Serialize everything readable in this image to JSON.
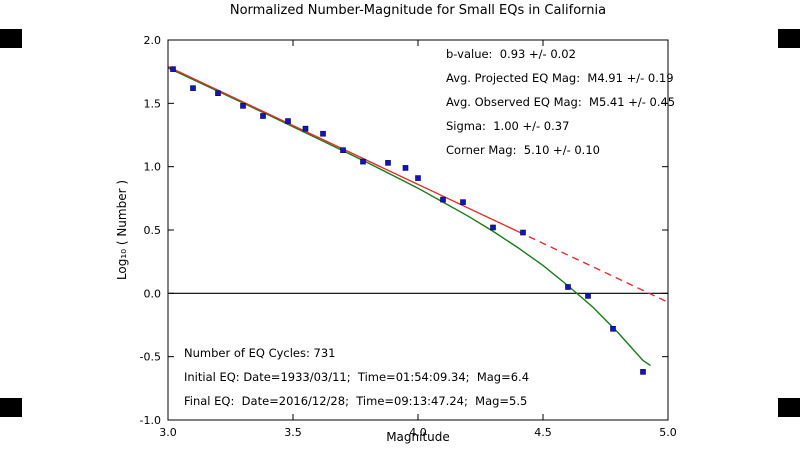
{
  "frame": {
    "background": "#ffffff",
    "corner_mark_color": "#000000"
  },
  "chart_data": {
    "type": "scatter",
    "title": "Normalized Number-Magnitude for Small EQs in California",
    "xlabel": "Magnitude",
    "ylabel": "Log₁₀ ( Number )",
    "xlim": [
      3.0,
      5.0
    ],
    "ylim": [
      -1.0,
      2.0
    ],
    "grid": false,
    "legend": "none",
    "x_ticks": [
      3.0,
      3.5,
      4.0,
      4.5,
      5.0
    ],
    "x_tick_labels": [
      "3.0",
      "3.5",
      "4.0",
      "4.5",
      "5.0"
    ],
    "y_ticks": [
      -1.0,
      -0.5,
      0.0,
      0.5,
      1.0,
      1.5,
      2.0
    ],
    "y_tick_labels": [
      "-1.0",
      "-0.5",
      "0.0",
      "0.5",
      "1.0",
      "1.5",
      "2.0"
    ],
    "annotations": {
      "stats_lines": [
        "b-value:  0.93 +/- 0.02",
        "Avg. Projected EQ Mag:  M4.91 +/- 0.19",
        "Avg. Observed EQ Mag:  M5.41 +/- 0.45",
        "Sigma:  1.00 +/- 0.37",
        "Corner Mag:  5.10 +/- 0.10"
      ],
      "info_lines": [
        "Number of EQ Cycles: 731",
        "Initial EQ: Date=1933/03/11;  Time=01:54:09.34;  Mag=6.4",
        "Final EQ:  Date=2016/12/28;  Time=09:13:47.24;  Mag=5.5"
      ]
    },
    "series": [
      {
        "name": "zero-reference-line",
        "type": "line",
        "style": "solid",
        "color": "#000000",
        "width": 1.2,
        "points": [
          [
            3.0,
            0.0
          ],
          [
            5.0,
            0.0
          ]
        ]
      },
      {
        "name": "tapered-gr-model-curve",
        "type": "line",
        "style": "solid",
        "color": "#1a7a1a",
        "width": 1.4,
        "points": [
          [
            3.0,
            1.78
          ],
          [
            3.2,
            1.595
          ],
          [
            3.4,
            1.41
          ],
          [
            3.6,
            1.22
          ],
          [
            3.8,
            1.03
          ],
          [
            3.9,
            0.93
          ],
          [
            4.0,
            0.83
          ],
          [
            4.1,
            0.72
          ],
          [
            4.2,
            0.61
          ],
          [
            4.3,
            0.49
          ],
          [
            4.4,
            0.36
          ],
          [
            4.5,
            0.22
          ],
          [
            4.6,
            0.06
          ],
          [
            4.7,
            -0.11
          ],
          [
            4.8,
            -0.31
          ],
          [
            4.9,
            -0.53
          ],
          [
            4.93,
            -0.57
          ]
        ]
      },
      {
        "name": "gr-fit-line",
        "type": "line",
        "style": "solid",
        "color": "#e03030",
        "width": 1.4,
        "points": [
          [
            3.0,
            1.79
          ],
          [
            4.4,
            0.488
          ]
        ]
      },
      {
        "name": "gr-fit-extrapolation-dashed",
        "type": "line",
        "style": "dashed",
        "color": "#e03030",
        "width": 1.4,
        "points": [
          [
            4.4,
            0.488
          ],
          [
            5.05,
            -0.116
          ]
        ]
      },
      {
        "name": "observed-eq-counts",
        "type": "scatter",
        "marker": "square",
        "color": "#1414b8",
        "size": 5,
        "points": [
          [
            3.02,
            1.77
          ],
          [
            3.1,
            1.62
          ],
          [
            3.2,
            1.58
          ],
          [
            3.3,
            1.48
          ],
          [
            3.38,
            1.4
          ],
          [
            3.48,
            1.36
          ],
          [
            3.55,
            1.3
          ],
          [
            3.62,
            1.26
          ],
          [
            3.7,
            1.13
          ],
          [
            3.78,
            1.04
          ],
          [
            3.88,
            1.03
          ],
          [
            3.95,
            0.99
          ],
          [
            4.0,
            0.91
          ],
          [
            4.1,
            0.74
          ],
          [
            4.18,
            0.72
          ],
          [
            4.3,
            0.52
          ],
          [
            4.42,
            0.48
          ],
          [
            4.6,
            0.05
          ],
          [
            4.68,
            -0.02
          ],
          [
            4.78,
            -0.28
          ],
          [
            4.9,
            -0.62
          ]
        ]
      }
    ]
  }
}
